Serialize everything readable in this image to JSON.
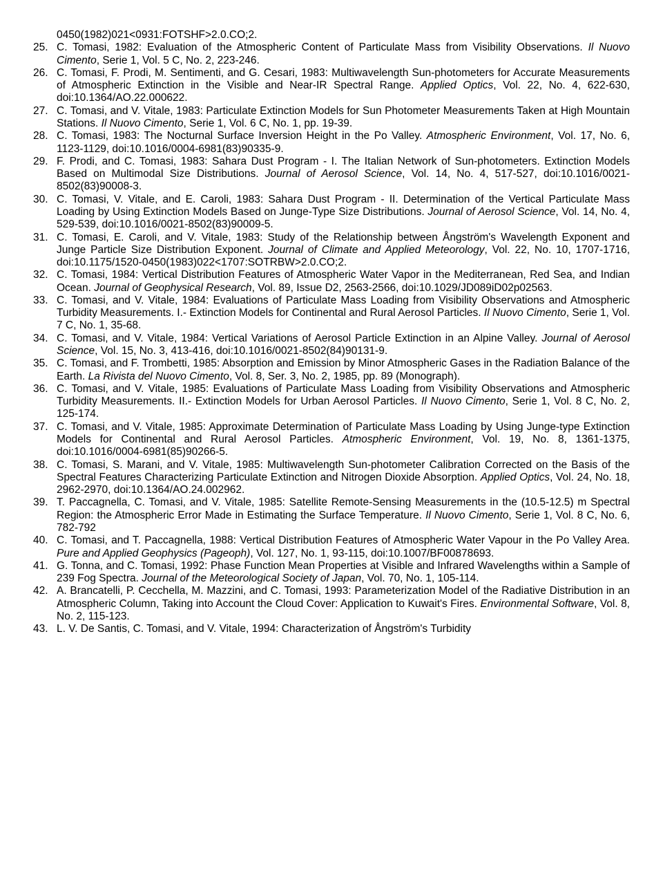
{
  "frag_top": "0450(1982)021<0931:FOTSHF>2.0.CO;2.",
  "refs": [
    {
      "n": "25.",
      "t": "C. Tomasi, 1982: Evaluation of the Atmospheric Content of Particulate Mass from Visibility Observations. <i>Il Nuovo Cimento</i>, Serie 1, Vol. 5 C, No. 2, 223-246."
    },
    {
      "n": "26.",
      "t": "C. Tomasi, F. Prodi, M. Sentimenti, and G. Cesari, 1983: Multiwavelength Sun-photometers for Accurate Measurements of Atmospheric Extinction in the Visible and Near-IR Spectral Range. <i>Applied Optics</i>, Vol. 22, No. 4, 622-630, doi:10.1364/AO.22.000622."
    },
    {
      "n": "27.",
      "t": "C. Tomasi, and V. Vitale, 1983: Particulate Extinction Models for Sun Photometer Measurements Taken at High Mountain Stations. <i>Il Nuovo Cimento</i>, Serie 1, Vol. 6 C, No. 1, pp. 19-39."
    },
    {
      "n": "28.",
      "t": "C. Tomasi, 1983: The Nocturnal Surface Inversion Height in the Po Valley. <i>Atmospheric Environment</i>, Vol. 17, No. 6, 1123-1129, doi:10.1016/0004-6981(83)90335-9."
    },
    {
      "n": "29.",
      "t": "F. Prodi, and C. Tomasi, 1983: Sahara Dust Program - I. The Italian Network of Sun-photometers. Extinction Models Based on Multimodal Size Distributions. <i>Journal of Aerosol Science</i>, Vol. 14, No. 4, 517-527, doi:10.1016/0021-8502(83)90008-3."
    },
    {
      "n": "30.",
      "t": "C. Tomasi, V. Vitale, and E. Caroli, 1983: Sahara Dust Program - II. Determination of the Vertical Particulate Mass Loading by Using Extinction Models Based on Junge-Type Size Distributions. <i>Journal of Aerosol Science</i>, Vol. 14, No. 4, 529-539, doi:10.1016/0021-8502(83)90009-5."
    },
    {
      "n": "31.",
      "t": "C. Tomasi, E. Caroli, and V. Vitale, 1983: Study of the Relationship between Ångström's Wavelength Exponent and Junge Particle Size Distribution Exponent. <i>Journal of Climate and Applied Meteorology</i>, Vol. 22, No. 10, 1707-1716, doi:10.1175/1520-0450(1983)022<1707:SOTRBW>2.0.CO;2."
    },
    {
      "n": "32.",
      "t": "C. Tomasi, 1984: Vertical Distribution Features of Atmospheric Water Vapor in the Mediterranean, Red Sea, and Indian Ocean. <i>Journal of Geophysical Research</i>, Vol. 89, Issue D2, 2563-2566, doi:10.1029/JD089iD02p02563."
    },
    {
      "n": "33.",
      "t": "C. Tomasi, and V. Vitale, 1984: Evaluations of Particulate Mass Loading from Visibility Observations and Atmospheric Turbidity Measurements. I.- Extinction Models for Continental and Rural Aerosol Particles. <i>Il Nuovo Cimento</i>, Serie 1, Vol. 7 C, No. 1, 35-68."
    },
    {
      "n": "34.",
      "t": "C. Tomasi, and V. Vitale, 1984: Vertical Variations of Aerosol Particle Extinction in an Alpine Valley. <i>Journal of Aerosol Science</i>, Vol. 15, No. 3, 413-416, doi:10.1016/0021-8502(84)90131-9."
    },
    {
      "n": "35.",
      "t": "C. Tomasi, and F. Trombetti, 1985: Absorption and Emission by Minor Atmospheric Gases in the Radiation Balance of the Earth. <i>La Rivista del Nuovo Cimento</i>, Vol. 8, Ser. 3, No. 2, 1985, pp. 89 (Monograph)."
    },
    {
      "n": "36.",
      "t": "C. Tomasi, and V. Vitale, 1985: Evaluations of Particulate Mass Loading from Visibility Observations and Atmospheric Turbidity Measurements. II.- Extinction Models for Urban Aerosol Particles. <i>Il Nuovo Cimento</i>, Serie 1, Vol. 8 C, No. 2, 125-174."
    },
    {
      "n": "37.",
      "t": "C. Tomasi, and V. Vitale, 1985: Approximate Determination of Particulate Mass Loading by Using Junge-type Extinction Models for Continental and Rural Aerosol Particles. <i>Atmospheric Environment</i>, Vol. 19, No. 8, 1361-1375, doi:10.1016/0004-6981(85)90266-5."
    },
    {
      "n": "38.",
      "t": "C. Tomasi, S. Marani, and V. Vitale, 1985: Multiwavelength Sun-photometer Calibration Corrected on the Basis of the Spectral Features Characterizing Particulate Extinction and Nitrogen Dioxide Absorption. <i>Applied Optics</i>, Vol. 24, No. 18, 2962-2970, doi:10.1364/AO.24.002962."
    },
    {
      "n": "39.",
      "t": "T. Paccagnella, C. Tomasi, and V. Vitale, 1985: Satellite Remote-Sensing Measurements in the (10.5-12.5) m Spectral Region: the Atmospheric Error Made in Estimating the Surface Temperature. <i>Il Nuovo Cimento</i>, Serie 1, Vol. 8 C, No. 6, 782-792"
    },
    {
      "n": "40.",
      "t": "C. Tomasi, and T. Paccagnella, 1988: Vertical Distribution Features of Atmospheric Water Vapour in the Po Valley Area. <i>Pure and Applied Geophysics (Pageoph)</i>, Vol. 127, No. 1, 93-115, doi:10.1007/BF00878693."
    },
    {
      "n": "41.",
      "t": "G. Tonna, and C. Tomasi, 1992: Phase Function Mean Properties at Visible and Infrared Wavelengths within a Sample of 239 Fog Spectra. <i>Journal of the Meteorological Society of Japan</i>, Vol. 70, No. 1, 105-114."
    },
    {
      "n": "42.",
      "t": "A. Brancatelli, P. Cecchella, M. Mazzini, and C. Tomasi, 1993: Parameterization Model of the Radiative Distribution in an Atmospheric Column, Taking into Account the Cloud Cover: Application to Kuwait's Fires. <i>Environmental Software</i>, Vol. 8, No. 2, 115-123."
    },
    {
      "n": "43.",
      "t": "L. V. De Santis, C. Tomasi, and V. Vitale, 1994: Characterization of Ångström's Turbidity"
    }
  ]
}
